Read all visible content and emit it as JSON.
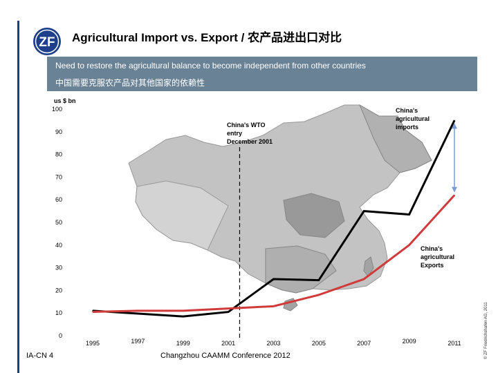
{
  "slide": {
    "title": "Agricultural Import vs. Export / 农产品进出口对比",
    "banner_line1": "Need to restore the agricultural balance to become independent from other countries",
    "banner_line2": "中国需要克服农产品对其他国家的依赖性",
    "footer_left": "IA-CN 4",
    "footer_center": "Changzhou CAAMM Conference 2012",
    "copyright": "© ZF Friedrichshafen AG, 2011",
    "logo_text": "ZF",
    "colors": {
      "accent": "#1e3f8a",
      "banner": "#6a8296",
      "imports": "#000000",
      "exports": "#d03a3a",
      "gap_arrow": "#7a9cd6"
    }
  },
  "chart_data": {
    "type": "line",
    "ylabel": "us $ bn",
    "ylim": [
      0,
      100
    ],
    "yticks": [
      0,
      10,
      20,
      30,
      40,
      50,
      60,
      70,
      80,
      90,
      100
    ],
    "xticks": [
      "1995",
      "1997",
      "1999",
      "2001",
      "2003",
      "2005",
      "2007",
      "2009",
      "2011"
    ],
    "series": [
      {
        "name": "China's agricultural imports",
        "x": [
          1995,
          1999,
          2001,
          2003,
          2005,
          2007,
          2009,
          2011
        ],
        "values": [
          11,
          8.5,
          10.5,
          25,
          24.5,
          55,
          53.5,
          95
        ]
      },
      {
        "name": "China's agricultural Exports",
        "x": [
          1995,
          1997,
          1999,
          2001,
          2003,
          2005,
          2007,
          2009,
          2011
        ],
        "values": [
          10.5,
          11,
          11,
          12,
          13,
          18,
          25,
          40,
          62
        ]
      }
    ],
    "annotations": [
      {
        "text": "China's WTO entry December 2001",
        "x": 2001.5
      },
      {
        "text": "China's agricultural imports"
      },
      {
        "text": "China's agricultural Exports"
      }
    ],
    "gap_arrow": {
      "x": 2011,
      "from": 62,
      "to": 95
    },
    "grid": false,
    "background": "map of China"
  }
}
